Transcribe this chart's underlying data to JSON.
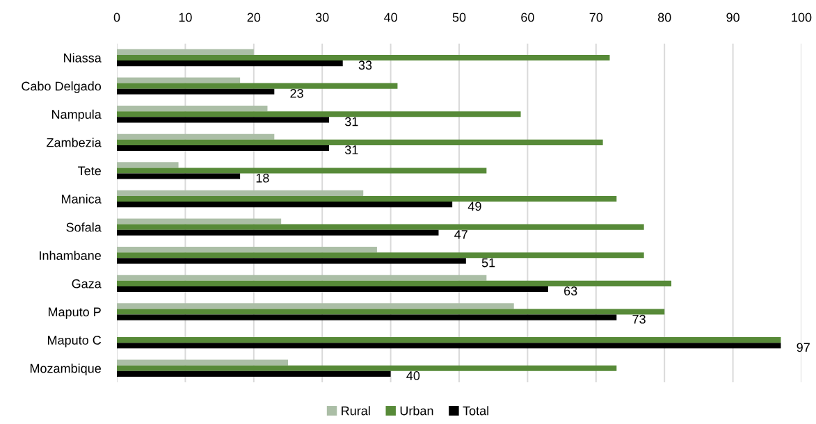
{
  "chart_data": {
    "type": "bar",
    "orientation": "horizontal",
    "categories": [
      "Niassa",
      "Cabo Delgado",
      "Nampula",
      "Zambezia",
      "Tete",
      "Manica",
      "Sofala",
      "Inhambane",
      "Gaza",
      "Maputo P",
      "Maputo C",
      "Mozambique"
    ],
    "series": [
      {
        "name": "Rural",
        "color": "#abbea6",
        "values": [
          20,
          18,
          22,
          23,
          9,
          36,
          24,
          38,
          54,
          58,
          null,
          25
        ]
      },
      {
        "name": "Urban",
        "color": "#578a38",
        "values": [
          72,
          41,
          59,
          71,
          54,
          73,
          77,
          77,
          81,
          80,
          97,
          73
        ]
      },
      {
        "name": "Total",
        "color": "#000000",
        "values": [
          33,
          23,
          31,
          31,
          18,
          49,
          47,
          51,
          63,
          73,
          97,
          40
        ],
        "value_labels": [
          "33",
          "23",
          "31",
          "31",
          "18",
          "49",
          "47",
          "51",
          "63",
          "73",
          "97",
          "40"
        ]
      }
    ],
    "xlim": [
      0,
      100
    ],
    "xticks": [
      0,
      10,
      20,
      30,
      40,
      50,
      60,
      70,
      80,
      90,
      100
    ],
    "grid": "x",
    "legend": "bottom"
  }
}
